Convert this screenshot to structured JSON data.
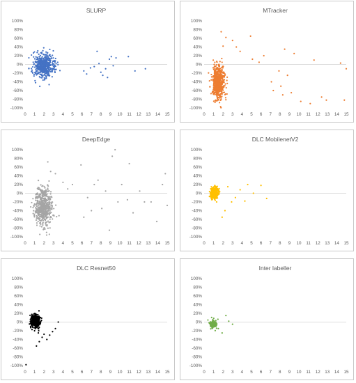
{
  "chart_data": [
    {
      "type": "scatter",
      "title": "SLURP",
      "color": "#4472C4",
      "xlim": [
        0,
        15
      ],
      "ylim": [
        -100,
        100
      ],
      "x_ticks": [
        "0",
        "1",
        "2",
        "3",
        "4",
        "5",
        "6",
        "7",
        "8",
        "9",
        "10",
        "11",
        "12",
        "13",
        "14",
        "15"
      ],
      "y_ticks": [
        "100%",
        "80%",
        "60%",
        "40%",
        "20%",
        "0%",
        "-20%",
        "-40%",
        "-60%",
        "-80%",
        "-100%"
      ],
      "grid": false,
      "cluster": {
        "x_center": 2.0,
        "x_spread": 1.0,
        "y_center": -2,
        "y_spread": 13,
        "count": 520
      },
      "points": [
        [
          6.2,
          -15
        ],
        [
          6.5,
          -22
        ],
        [
          6.9,
          -8
        ],
        [
          7.3,
          -5
        ],
        [
          7.6,
          30
        ],
        [
          7.8,
          2
        ],
        [
          8.0,
          -18
        ],
        [
          8.2,
          -25
        ],
        [
          8.5,
          -10
        ],
        [
          8.7,
          -30
        ],
        [
          8.9,
          12
        ],
        [
          9.1,
          18
        ],
        [
          9.3,
          -3
        ],
        [
          9.6,
          15
        ],
        [
          10.9,
          18
        ],
        [
          11.6,
          -15
        ],
        [
          12.7,
          -10
        ]
      ]
    },
    {
      "type": "scatter",
      "title": "MTracker",
      "color": "#ED7D31",
      "xlim": [
        0,
        15
      ],
      "ylim": [
        -100,
        100
      ],
      "x_ticks": [
        "0",
        "1",
        "2",
        "3",
        "4",
        "5",
        "6",
        "7",
        "8",
        "9",
        "10",
        "11",
        "12",
        "13",
        "14",
        "15"
      ],
      "y_ticks": [
        "100%",
        "80%",
        "60%",
        "40%",
        "20%",
        "0%",
        "-20%",
        "-40%",
        "-60%",
        "-80%",
        "-100%"
      ],
      "grid": false,
      "cluster": {
        "x_center": 1.5,
        "x_spread": 0.6,
        "y_center": -42,
        "y_spread": 20,
        "count": 560
      },
      "points": [
        [
          1.8,
          75
        ],
        [
          2.3,
          62
        ],
        [
          2.0,
          42
        ],
        [
          3.0,
          55
        ],
        [
          3.4,
          40
        ],
        [
          3.8,
          30
        ],
        [
          4.9,
          65
        ],
        [
          5.1,
          12
        ],
        [
          5.8,
          5
        ],
        [
          6.3,
          20
        ],
        [
          7.1,
          -40
        ],
        [
          7.3,
          -60
        ],
        [
          7.9,
          -15
        ],
        [
          8.1,
          -50
        ],
        [
          8.3,
          -70
        ],
        [
          8.5,
          35
        ],
        [
          8.8,
          -25
        ],
        [
          9.2,
          -65
        ],
        [
          9.5,
          25
        ],
        [
          10.2,
          -85
        ],
        [
          11.2,
          -90
        ],
        [
          11.6,
          10
        ],
        [
          12.4,
          -75
        ],
        [
          12.9,
          -82
        ],
        [
          14.4,
          3
        ],
        [
          14.8,
          -82
        ],
        [
          15.0,
          -10
        ]
      ]
    },
    {
      "type": "scatter",
      "title": "DeepEdge",
      "color": "#A5A5A5",
      "xlim": [
        0,
        15
      ],
      "ylim": [
        -100,
        100
      ],
      "x_ticks": [
        "0",
        "1",
        "2",
        "3",
        "4",
        "5",
        "6",
        "7",
        "8",
        "9",
        "10",
        "11",
        "12",
        "13",
        "14",
        "15"
      ],
      "y_ticks": [
        "100%",
        "80%",
        "60%",
        "40%",
        "20%",
        "0%",
        "-20%",
        "-40%",
        "-60%",
        "-80%",
        "-100%"
      ],
      "grid": false,
      "cluster": {
        "x_center": 1.9,
        "x_spread": 0.9,
        "y_center": -30,
        "y_spread": 22,
        "count": 560
      },
      "points": [
        [
          2.4,
          72
        ],
        [
          2.7,
          50
        ],
        [
          3.2,
          45
        ],
        [
          4.0,
          25
        ],
        [
          4.5,
          10
        ],
        [
          5.0,
          20
        ],
        [
          5.9,
          65
        ],
        [
          6.2,
          -55
        ],
        [
          6.6,
          -10
        ],
        [
          7.0,
          -40
        ],
        [
          7.3,
          20
        ],
        [
          7.7,
          30
        ],
        [
          8.1,
          -35
        ],
        [
          8.5,
          5
        ],
        [
          8.9,
          -85
        ],
        [
          9.2,
          85
        ],
        [
          9.5,
          100
        ],
        [
          9.8,
          -20
        ],
        [
          10.2,
          20
        ],
        [
          10.8,
          -15
        ],
        [
          11.0,
          68
        ],
        [
          11.4,
          -45
        ],
        [
          12.1,
          5
        ],
        [
          12.6,
          -20
        ],
        [
          13.3,
          -20
        ],
        [
          13.9,
          -65
        ],
        [
          14.5,
          20
        ],
        [
          14.8,
          45
        ],
        [
          15.0,
          -28
        ]
      ]
    },
    {
      "type": "scatter",
      "title": "DLC MobilenetV2",
      "color": "#FFC000",
      "xlim": [
        0,
        15
      ],
      "ylim": [
        -100,
        100
      ],
      "x_ticks": [
        "0",
        "1",
        "2",
        "3",
        "4",
        "5",
        "6",
        "7",
        "8",
        "9",
        "10",
        "11",
        "12",
        "13",
        "14",
        "15"
      ],
      "y_ticks": [
        "100%",
        "80%",
        "60%",
        "40%",
        "20%",
        "0%",
        "-20%",
        "-40%",
        "-60%",
        "-80%",
        "-100%"
      ],
      "grid": false,
      "cluster": {
        "x_center": 1.1,
        "x_spread": 0.35,
        "y_center": 0,
        "y_spread": 6,
        "count": 500
      },
      "points": [
        [
          1.9,
          -55
        ],
        [
          2.2,
          -40
        ],
        [
          2.5,
          15
        ],
        [
          2.9,
          -20
        ],
        [
          3.3,
          -10
        ],
        [
          3.8,
          8
        ],
        [
          4.3,
          -18
        ],
        [
          4.6,
          20
        ],
        [
          5.2,
          0
        ],
        [
          6.0,
          18
        ],
        [
          6.6,
          -12
        ]
      ]
    },
    {
      "type": "scatter",
      "title": "DLC Resnet50",
      "color": "#000000",
      "xlim": [
        0,
        15
      ],
      "ylim": [
        -100,
        100
      ],
      "x_ticks": [
        "0",
        "1",
        "2",
        "3",
        "4",
        "5",
        "6",
        "7",
        "8",
        "9",
        "10",
        "11",
        "12",
        "13",
        "14",
        "15"
      ],
      "y_ticks": [
        "100%",
        "80%",
        "60%",
        "40%",
        "20%",
        "0%",
        "-20%",
        "-40%",
        "-60%",
        "-80%",
        "-100%"
      ],
      "grid": false,
      "cluster": {
        "x_center": 1.1,
        "x_spread": 0.4,
        "y_center": 2,
        "y_spread": 7,
        "count": 520
      },
      "points": [
        [
          0.1,
          -98
        ],
        [
          1.2,
          -55
        ],
        [
          1.5,
          -45
        ],
        [
          1.8,
          -35
        ],
        [
          2.0,
          -28
        ],
        [
          2.3,
          -40
        ],
        [
          2.6,
          -30
        ],
        [
          2.9,
          -22
        ],
        [
          3.2,
          -15
        ],
        [
          3.5,
          0
        ],
        [
          1.0,
          -20
        ],
        [
          1.4,
          -25
        ]
      ]
    },
    {
      "type": "scatter",
      "title": "Inter labeller",
      "color": "#70AD47",
      "xlim": [
        0,
        15
      ],
      "ylim": [
        -100,
        100
      ],
      "x_ticks": [
        "0",
        "1",
        "2",
        "3",
        "4",
        "5",
        "6",
        "7",
        "8",
        "9",
        "10",
        "11",
        "12",
        "13",
        "14",
        "15"
      ],
      "y_ticks": [
        "100%",
        "80%",
        "60%",
        "40%",
        "20%",
        "0%",
        "-20%",
        "-40%",
        "-60%",
        "-80%",
        "-100%"
      ],
      "grid": false,
      "cluster": {
        "x_center": 1.0,
        "x_spread": 0.35,
        "y_center": -5,
        "y_spread": 5,
        "count": 130
      },
      "points": [
        [
          2.3,
          15
        ],
        [
          2.6,
          2
        ],
        [
          3.0,
          -5
        ],
        [
          1.9,
          -25
        ],
        [
          1.5,
          -15
        ]
      ]
    }
  ]
}
